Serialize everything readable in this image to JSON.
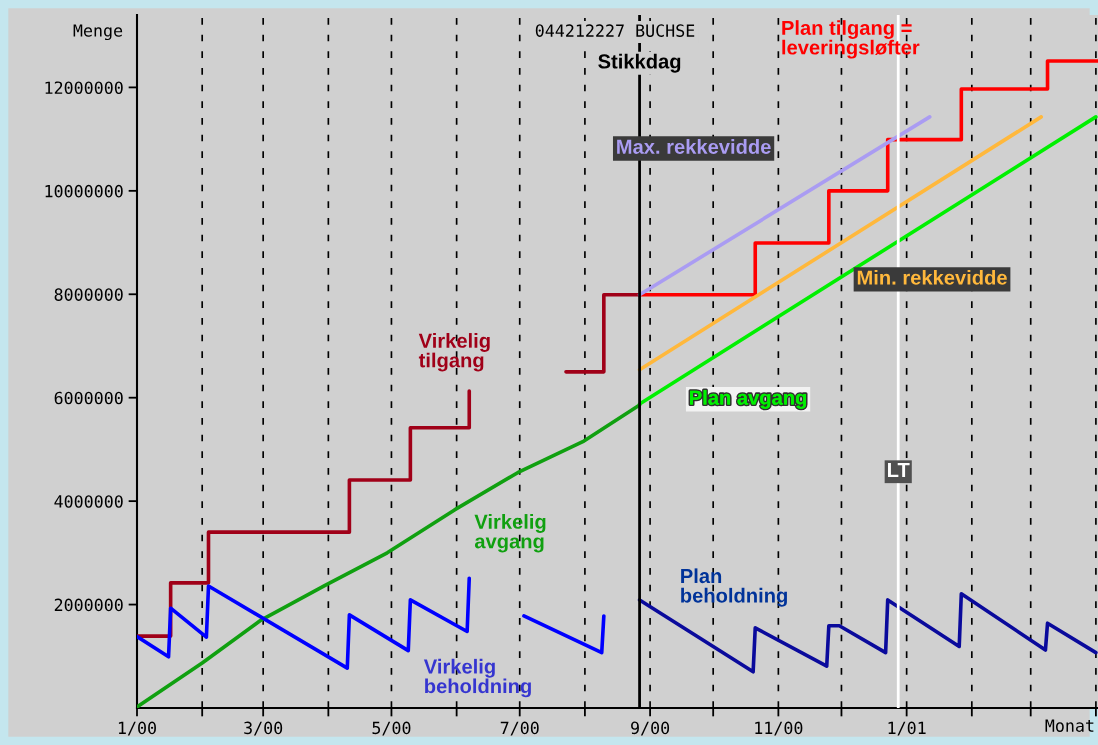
{
  "chart_data": {
    "type": "line",
    "title": "044212227 BUCHSE",
    "xlabel": "Monat",
    "ylabel": "Menge",
    "xlim": [
      "2000-01-01",
      "2001-04-02"
    ],
    "ylim": [
      0,
      13400000
    ],
    "xticks": [
      {
        "value": "2000-01",
        "label": "1/00"
      },
      {
        "value": "2000-02",
        "label": null
      },
      {
        "value": "2000-03",
        "label": "3/00"
      },
      {
        "value": "2000-04",
        "label": null
      },
      {
        "value": "2000-05",
        "label": "5/00"
      },
      {
        "value": "2000-06",
        "label": null
      },
      {
        "value": "2000-07",
        "label": "7/00"
      },
      {
        "value": "2000-08",
        "label": null
      },
      {
        "value": "2000-09",
        "label": "9/00"
      },
      {
        "value": "2000-10",
        "label": null
      },
      {
        "value": "2000-11",
        "label": "11/00"
      },
      {
        "value": "2000-12",
        "label": null
      },
      {
        "value": "2001-01",
        "label": "1/01"
      },
      {
        "value": "2001-02",
        "label": null
      },
      {
        "value": "2001-03",
        "label": null
      },
      {
        "value": "2001-04",
        "label": null
      }
    ],
    "yticks": [
      2000000,
      4000000,
      6000000,
      8000000,
      10000000,
      12000000
    ],
    "grid": "x",
    "series": [
      {
        "name": "Virkelig tilgang",
        "type": "step",
        "color": "#a00018",
        "x": [
          "2000-01-01",
          "2000-01-17",
          "2000-02-04",
          "2000-04-11",
          "2000-05-10",
          "2000-06-07",
          "2000-07-01",
          "2000-07-23",
          "2000-08-10",
          "2000-08-27"
        ],
        "values": [
          1390000,
          2420000,
          3400000,
          4410000,
          5420000,
          6130000,
          null,
          6500000,
          7990000,
          7990000
        ]
      },
      {
        "name": "Plan tilgang = leveringsløfter",
        "type": "step",
        "color": "#ff0000",
        "x": [
          "2000-08-27",
          "2000-10-21",
          "2000-11-25",
          "2000-12-23",
          "2001-01-27",
          "2001-03-09",
          "2001-04-02"
        ],
        "values": [
          7990000,
          8990000,
          10000000,
          10990000,
          11970000,
          12510000,
          12510000
        ]
      },
      {
        "name": "Virkelig avgang",
        "type": "line",
        "color": "#10a010",
        "x": [
          "2000-01-01",
          "2000-02-01",
          "2000-02-29",
          "2000-03-30",
          "2000-04-29",
          "2000-05-31",
          "2000-06-30",
          "2000-07-31",
          "2000-08-27"
        ],
        "values": [
          20000,
          870000,
          1700000,
          2360000,
          3000000,
          3830000,
          4550000,
          5150000,
          5860000
        ]
      },
      {
        "name": "Plan avgang",
        "type": "line",
        "color": "#00f000",
        "x": [
          "2000-08-27",
          "2001-04-01"
        ],
        "values": [
          5880000,
          11430000
        ]
      },
      {
        "name": "Max. rekkevidde",
        "type": "line",
        "color": "#aa9cf2",
        "x": [
          "2000-08-27",
          "2001-01-12"
        ],
        "values": [
          7990000,
          11430000
        ]
      },
      {
        "name": "Min. rekkevidde",
        "type": "line",
        "color": "#ffb83c",
        "x": [
          "2000-08-27",
          "2001-03-06"
        ],
        "values": [
          6540000,
          11430000
        ]
      },
      {
        "name": "Virkelig beholdning",
        "type": "line",
        "color": "#0000ff",
        "x": [
          "2000-01-01",
          "2000-01-16",
          "2000-01-17",
          "2000-02-03",
          "2000-02-04",
          "2000-04-10",
          "2000-04-11",
          "2000-05-09",
          "2000-05-10",
          "2000-06-06",
          "2000-06-07",
          "2000-06-19",
          "2000-07-03",
          "2000-08-09",
          "2000-08-10"
        ],
        "values": [
          1380000,
          990000,
          1930000,
          1370000,
          2360000,
          770000,
          1800000,
          1110000,
          2090000,
          1480000,
          2510000,
          null,
          1780000,
          1070000,
          1780000
        ]
      },
      {
        "name": "Plan beholdning",
        "type": "line",
        "color": "#0a0a9c",
        "x": [
          "2000-08-27",
          "2000-10-20",
          "2000-10-21",
          "2000-11-24",
          "2000-11-25",
          "2000-11-30",
          "2000-12-22",
          "2000-12-23",
          "2001-01-26",
          "2001-01-27",
          "2001-03-08",
          "2001-03-09",
          "2001-04-01"
        ],
        "values": [
          2090000,
          700000,
          1550000,
          810000,
          1590000,
          1590000,
          1070000,
          2090000,
          1190000,
          2210000,
          1120000,
          1640000,
          1070000
        ]
      }
    ],
    "ref_lines": [
      {
        "axis": "x",
        "value": "2000-08-27",
        "label": "Stikkdag",
        "color": "#000000"
      },
      {
        "axis": "x",
        "value": "2000-12-28",
        "label": "LT",
        "color": "#ffffff"
      }
    ]
  }
}
